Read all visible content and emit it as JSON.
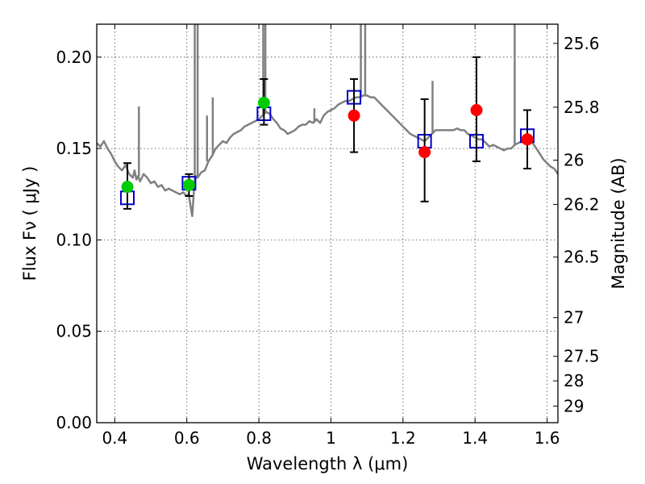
{
  "chart_data": {
    "type": "scatter",
    "xlabel": "Wavelength  λ (μm)",
    "ylabel": "Flux  Fν  ( μJy )",
    "y2label": "Magnitude (AB)",
    "xlim": [
      0.35,
      1.63
    ],
    "ylim": [
      0.0,
      0.218
    ],
    "grid": true,
    "x_ticks": [
      0.4,
      0.6,
      0.8,
      1.0,
      1.2,
      1.4,
      1.6
    ],
    "x_tick_labels": [
      "0.4",
      "0.6",
      "0.8",
      "1",
      "1.2",
      "1.4",
      "1.6"
    ],
    "y_ticks": [
      0.0,
      0.05,
      0.1,
      0.15,
      0.2
    ],
    "y_tick_labels": [
      "0.00",
      "0.05",
      "0.10",
      "0.15",
      "0.20"
    ],
    "y2_ticks": [
      {
        "label": "25.6",
        "flux": 0.2075
      },
      {
        "label": "25.8",
        "flux": 0.1726
      },
      {
        "label": "26",
        "flux": 0.1436
      },
      {
        "label": "26.2",
        "flux": 0.1194
      },
      {
        "label": "26.5",
        "flux": 0.0906
      },
      {
        "label": "27",
        "flux": 0.0575
      },
      {
        "label": "27.5",
        "flux": 0.0363
      },
      {
        "label": "28",
        "flux": 0.0229
      },
      {
        "label": "29",
        "flux": 0.0091
      }
    ],
    "series": [
      {
        "kind": "model-spectrum",
        "color": "#808080",
        "points": [
          [
            0.35,
            0.153
          ],
          [
            0.36,
            0.151
          ],
          [
            0.37,
            0.154
          ],
          [
            0.38,
            0.15
          ],
          [
            0.39,
            0.147
          ],
          [
            0.4,
            0.143
          ],
          [
            0.41,
            0.14
          ],
          [
            0.42,
            0.138
          ],
          [
            0.43,
            0.141
          ],
          [
            0.44,
            0.136
          ],
          [
            0.45,
            0.134
          ],
          [
            0.455,
            0.138
          ],
          [
            0.46,
            0.133
          ],
          [
            0.465,
            0.135
          ],
          [
            0.47,
            0.132
          ],
          [
            0.48,
            0.136
          ],
          [
            0.49,
            0.134
          ],
          [
            0.5,
            0.131
          ],
          [
            0.51,
            0.132
          ],
          [
            0.52,
            0.129
          ],
          [
            0.53,
            0.13
          ],
          [
            0.54,
            0.127
          ],
          [
            0.55,
            0.128
          ],
          [
            0.56,
            0.127
          ],
          [
            0.57,
            0.126
          ],
          [
            0.58,
            0.125
          ],
          [
            0.59,
            0.126
          ],
          [
            0.6,
            0.124
          ],
          [
            0.605,
            0.125
          ],
          [
            0.61,
            0.119
          ],
          [
            0.615,
            0.113
          ],
          [
            0.62,
            0.128
          ],
          [
            0.625,
            0.135
          ],
          [
            0.63,
            0.134
          ],
          [
            0.64,
            0.137
          ],
          [
            0.65,
            0.138
          ],
          [
            0.66,
            0.143
          ],
          [
            0.67,
            0.146
          ],
          [
            0.68,
            0.15
          ],
          [
            0.69,
            0.152
          ],
          [
            0.7,
            0.154
          ],
          [
            0.71,
            0.153
          ],
          [
            0.72,
            0.156
          ],
          [
            0.73,
            0.158
          ],
          [
            0.74,
            0.159
          ],
          [
            0.75,
            0.16
          ],
          [
            0.76,
            0.162
          ],
          [
            0.77,
            0.163
          ],
          [
            0.78,
            0.164
          ],
          [
            0.79,
            0.165
          ],
          [
            0.8,
            0.166
          ],
          [
            0.81,
            0.168
          ],
          [
            0.82,
            0.17
          ],
          [
            0.83,
            0.169
          ],
          [
            0.84,
            0.166
          ],
          [
            0.85,
            0.164
          ],
          [
            0.86,
            0.161
          ],
          [
            0.87,
            0.16
          ],
          [
            0.88,
            0.158
          ],
          [
            0.89,
            0.159
          ],
          [
            0.9,
            0.16
          ],
          [
            0.91,
            0.162
          ],
          [
            0.92,
            0.163
          ],
          [
            0.93,
            0.163
          ],
          [
            0.94,
            0.165
          ],
          [
            0.95,
            0.164
          ],
          [
            0.96,
            0.166
          ],
          [
            0.97,
            0.164
          ],
          [
            0.98,
            0.168
          ],
          [
            0.99,
            0.17
          ],
          [
            1.0,
            0.171
          ],
          [
            1.01,
            0.172
          ],
          [
            1.02,
            0.174
          ],
          [
            1.03,
            0.175
          ],
          [
            1.04,
            0.176
          ],
          [
            1.05,
            0.176
          ],
          [
            1.06,
            0.177
          ],
          [
            1.07,
            0.178
          ],
          [
            1.08,
            0.178
          ],
          [
            1.09,
            0.179
          ],
          [
            1.1,
            0.179
          ],
          [
            1.11,
            0.178
          ],
          [
            1.12,
            0.178
          ],
          [
            1.13,
            0.176
          ],
          [
            1.14,
            0.174
          ],
          [
            1.15,
            0.172
          ],
          [
            1.16,
            0.17
          ],
          [
            1.17,
            0.168
          ],
          [
            1.18,
            0.166
          ],
          [
            1.19,
            0.164
          ],
          [
            1.2,
            0.162
          ],
          [
            1.21,
            0.16
          ],
          [
            1.22,
            0.158
          ],
          [
            1.23,
            0.157
          ],
          [
            1.24,
            0.156
          ],
          [
            1.25,
            0.155
          ],
          [
            1.26,
            0.154
          ],
          [
            1.27,
            0.156
          ],
          [
            1.28,
            0.158
          ],
          [
            1.29,
            0.16
          ],
          [
            1.3,
            0.16
          ],
          [
            1.31,
            0.16
          ],
          [
            1.32,
            0.16
          ],
          [
            1.33,
            0.16
          ],
          [
            1.34,
            0.16
          ],
          [
            1.35,
            0.161
          ],
          [
            1.36,
            0.16
          ],
          [
            1.37,
            0.16
          ],
          [
            1.38,
            0.158
          ],
          [
            1.39,
            0.157
          ],
          [
            1.4,
            0.156
          ],
          [
            1.41,
            0.155
          ],
          [
            1.42,
            0.155
          ],
          [
            1.43,
            0.153
          ],
          [
            1.44,
            0.151
          ],
          [
            1.45,
            0.152
          ],
          [
            1.46,
            0.151
          ],
          [
            1.47,
            0.15
          ],
          [
            1.48,
            0.149
          ],
          [
            1.49,
            0.15
          ],
          [
            1.5,
            0.15
          ],
          [
            1.51,
            0.152
          ],
          [
            1.52,
            0.153
          ],
          [
            1.53,
            0.154
          ],
          [
            1.54,
            0.155
          ],
          [
            1.55,
            0.155
          ],
          [
            1.56,
            0.153
          ],
          [
            1.57,
            0.15
          ],
          [
            1.58,
            0.147
          ],
          [
            1.59,
            0.144
          ],
          [
            1.6,
            0.142
          ],
          [
            1.61,
            0.14
          ],
          [
            1.62,
            0.139
          ],
          [
            1.63,
            0.136
          ]
        ],
        "emission_lines": [
          [
            0.467,
            0.173
          ],
          [
            0.622,
            0.218
          ],
          [
            0.63,
            0.218
          ],
          [
            0.656,
            0.168
          ],
          [
            0.672,
            0.178
          ],
          [
            0.812,
            0.218
          ],
          [
            0.818,
            0.218
          ],
          [
            0.954,
            0.172
          ],
          [
            1.083,
            0.218
          ],
          [
            1.095,
            0.218
          ],
          [
            1.282,
            0.187
          ],
          [
            1.51,
            0.218
          ]
        ]
      },
      {
        "kind": "model-photometry",
        "marker": "open-square",
        "color": "#0000cc",
        "points": [
          [
            0.435,
            0.123
          ],
          [
            0.606,
            0.131
          ],
          [
            0.814,
            0.169
          ],
          [
            1.064,
            0.178
          ],
          [
            1.26,
            0.154
          ],
          [
            1.404,
            0.154
          ],
          [
            1.545,
            0.157
          ]
        ]
      },
      {
        "kind": "observed",
        "marker": "filled-circle",
        "color": "#00cc00",
        "points": [
          [
            0.435,
            0.129
          ],
          [
            0.606,
            0.13
          ],
          [
            0.814,
            0.175
          ]
        ],
        "error_low": [
          0.117,
          0.124,
          0.163
        ],
        "error_high": [
          0.142,
          0.136,
          0.188
        ]
      },
      {
        "kind": "observed",
        "marker": "filled-circle",
        "color": "#ff0000",
        "points": [
          [
            1.064,
            0.168
          ],
          [
            1.26,
            0.148
          ],
          [
            1.404,
            0.171
          ],
          [
            1.545,
            0.155
          ]
        ],
        "error_low": [
          0.148,
          0.121,
          0.143,
          0.139
        ],
        "error_high": [
          0.188,
          0.177,
          0.2,
          0.171
        ]
      }
    ]
  }
}
